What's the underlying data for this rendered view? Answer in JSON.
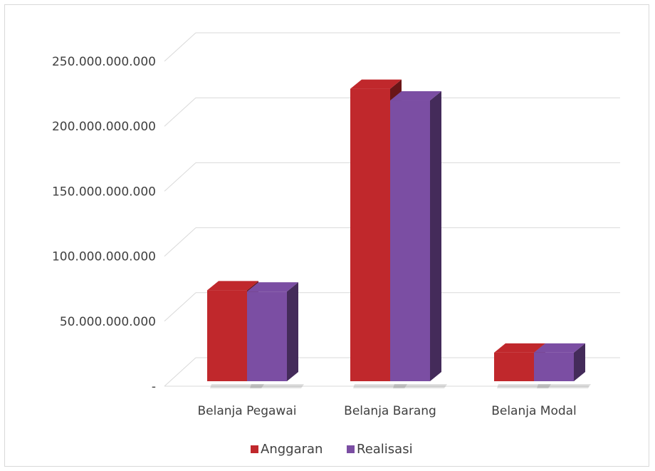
{
  "chart_data": {
    "type": "bar",
    "style": "3d-clustered-column",
    "categories": [
      "Belanja Pegawai",
      "Belanja Barang",
      "Belanja Modal"
    ],
    "series": [
      {
        "name": "Anggaran",
        "values": [
          70000000000,
          225000000000,
          22000000000
        ],
        "color": "#c0282c"
      },
      {
        "name": "Realisasi",
        "values": [
          69000000000,
          216000000000,
          22000000000
        ],
        "color": "#7b4ea3"
      }
    ],
    "y_ticks": [
      0,
      50000000000,
      100000000000,
      150000000000,
      200000000000,
      250000000000
    ],
    "y_tick_labels": [
      "-",
      "50.000.000.000",
      "100.000.000.000",
      "150.000.000.000",
      "200.000.000.000",
      "250.000.000.000"
    ],
    "ylim": [
      0,
      250000000000
    ],
    "grid": true,
    "legend_position": "bottom"
  }
}
